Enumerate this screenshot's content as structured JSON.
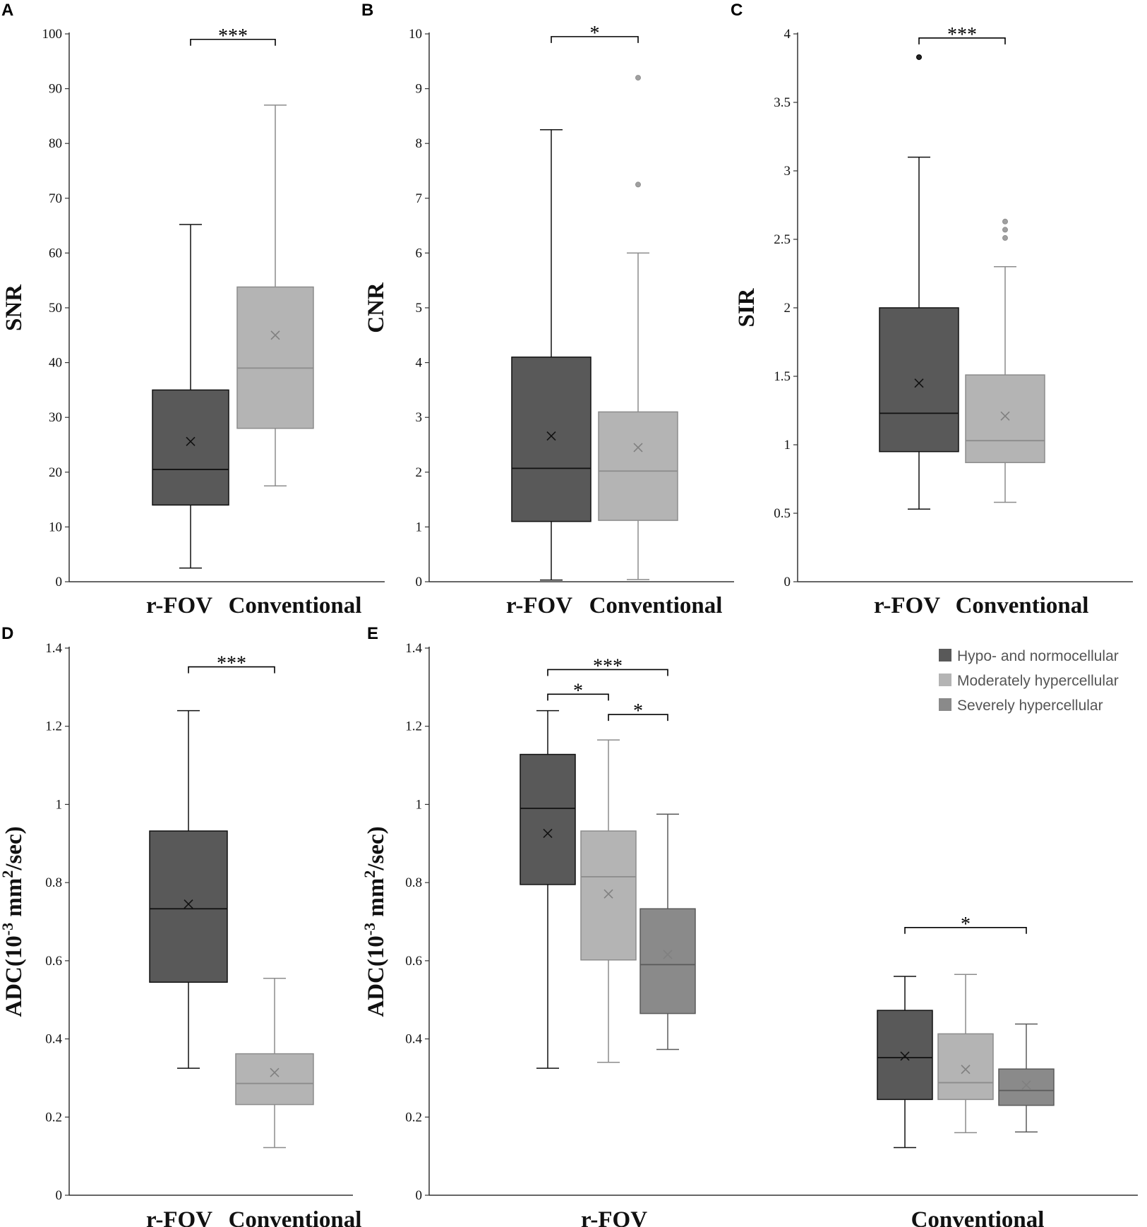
{
  "colors": {
    "hypo": "#595959",
    "moderate": "#b4b4b4",
    "severe": "#8a8a8a",
    "axis": "#333333"
  },
  "chart_data": [
    {
      "panel": "A",
      "type": "box",
      "ylabel": "SNR",
      "ylim": [
        0,
        100
      ],
      "yticks": [
        0,
        10,
        20,
        30,
        40,
        50,
        60,
        70,
        80,
        90,
        100
      ],
      "groups": [
        "r-FOV",
        "Conventional"
      ],
      "boxes": [
        {
          "group": "r-FOV",
          "series": "hypo",
          "min": 2.5,
          "q1": 14,
          "median": 20.5,
          "q3": 35,
          "max": 65.2,
          "mean": 25.6,
          "outliers": []
        },
        {
          "group": "Conventional",
          "series": "moderate",
          "min": 17.5,
          "q1": 28,
          "median": 39,
          "q3": 53.8,
          "max": 87,
          "mean": 45,
          "outliers": []
        }
      ],
      "significance": [
        {
          "from": 0,
          "to": 1,
          "label": "***",
          "y": 99
        }
      ]
    },
    {
      "panel": "B",
      "type": "box",
      "ylabel": "CNR",
      "ylim": [
        0,
        10
      ],
      "yticks": [
        0,
        1,
        2,
        3,
        4,
        5,
        6,
        7,
        8,
        9,
        10
      ],
      "groups": [
        "r-FOV",
        "Conventional"
      ],
      "boxes": [
        {
          "group": "r-FOV",
          "series": "hypo",
          "min": 0.03,
          "q1": 1.1,
          "median": 2.07,
          "q3": 4.1,
          "max": 8.25,
          "mean": 2.66,
          "outliers": []
        },
        {
          "group": "Conventional",
          "series": "moderate",
          "min": 0.04,
          "q1": 1.12,
          "median": 2.02,
          "q3": 3.1,
          "max": 6.0,
          "mean": 2.45,
          "outliers": [
            7.25,
            9.2
          ]
        }
      ],
      "significance": [
        {
          "from": 0,
          "to": 1,
          "label": "*",
          "y": 9.95
        }
      ]
    },
    {
      "panel": "C",
      "type": "box",
      "ylabel": "SIR",
      "ylim": [
        0,
        4
      ],
      "yticks": [
        0,
        0.5,
        1,
        1.5,
        2,
        2.5,
        3,
        3.5,
        4
      ],
      "groups": [
        "r-FOV",
        "Conventional"
      ],
      "boxes": [
        {
          "group": "r-FOV",
          "series": "hypo",
          "min": 0.53,
          "q1": 0.95,
          "median": 1.23,
          "q3": 2.0,
          "max": 3.1,
          "mean": 1.45,
          "outliers": [
            3.83
          ]
        },
        {
          "group": "Conventional",
          "series": "moderate",
          "min": 0.58,
          "q1": 0.87,
          "median": 1.03,
          "q3": 1.51,
          "max": 2.3,
          "mean": 1.21,
          "outliers": [
            2.51,
            2.57,
            2.63
          ]
        }
      ],
      "significance": [
        {
          "from": 0,
          "to": 1,
          "label": "***",
          "y": 3.97
        }
      ]
    },
    {
      "panel": "D",
      "type": "box",
      "ylabel": "ADC(10-3 mm2/sec)",
      "ylim": [
        0,
        1.4
      ],
      "yticks": [
        0,
        0.2,
        0.4,
        0.6,
        0.8,
        1,
        1.2,
        1.4
      ],
      "groups": [
        "r-FOV",
        "Conventional"
      ],
      "boxes": [
        {
          "group": "r-FOV",
          "series": "hypo",
          "min": 0.325,
          "q1": 0.545,
          "median": 0.733,
          "q3": 0.932,
          "max": 1.24,
          "mean": 0.745,
          "outliers": []
        },
        {
          "group": "Conventional",
          "series": "moderate",
          "min": 0.122,
          "q1": 0.232,
          "median": 0.286,
          "q3": 0.362,
          "max": 0.555,
          "mean": 0.314,
          "outliers": []
        }
      ],
      "significance": [
        {
          "from": 0,
          "to": 1,
          "label": "***",
          "y": 1.352
        }
      ]
    },
    {
      "panel": "E",
      "type": "box",
      "ylabel": "ADC(10-3 mm2/sec)",
      "ylim": [
        0,
        1.4
      ],
      "yticks": [
        0,
        0.2,
        0.4,
        0.6,
        0.8,
        1,
        1.2,
        1.4
      ],
      "groups": [
        "r-FOV",
        "Conventional"
      ],
      "legend": [
        "Hypo- and normocellular",
        "Moderately hypercellular",
        "Severely hypercellular"
      ],
      "legend_position": "top-right",
      "boxes": [
        {
          "group": "r-FOV",
          "series": "hypo",
          "min": 0.325,
          "q1": 0.795,
          "median": 0.99,
          "q3": 1.128,
          "max": 1.24,
          "mean": 0.926,
          "outliers": []
        },
        {
          "group": "r-FOV",
          "series": "moderate",
          "min": 0.34,
          "q1": 0.602,
          "median": 0.815,
          "q3": 0.932,
          "max": 1.165,
          "mean": 0.771,
          "outliers": []
        },
        {
          "group": "r-FOV",
          "series": "severe",
          "min": 0.373,
          "q1": 0.465,
          "median": 0.59,
          "q3": 0.733,
          "max": 0.975,
          "mean": 0.616,
          "outliers": []
        },
        {
          "group": "Conventional",
          "series": "hypo",
          "min": 0.122,
          "q1": 0.245,
          "median": 0.352,
          "q3": 0.473,
          "max": 0.56,
          "mean": 0.356,
          "outliers": []
        },
        {
          "group": "Conventional",
          "series": "moderate",
          "min": 0.16,
          "q1": 0.245,
          "median": 0.288,
          "q3": 0.413,
          "max": 0.565,
          "mean": 0.322,
          "outliers": []
        },
        {
          "group": "Conventional",
          "series": "severe",
          "min": 0.162,
          "q1": 0.23,
          "median": 0.268,
          "q3": 0.323,
          "max": 0.438,
          "mean": 0.282,
          "outliers": []
        }
      ],
      "significance": [
        {
          "from": 0,
          "to": 2,
          "label": "***",
          "y": 1.345
        },
        {
          "from": 0,
          "to": 1,
          "label": "*",
          "y": 1.282
        },
        {
          "from": 1,
          "to": 2,
          "label": "*",
          "y": 1.23
        },
        {
          "from": 3,
          "to": 5,
          "label": "*",
          "y": 0.685
        }
      ]
    }
  ]
}
